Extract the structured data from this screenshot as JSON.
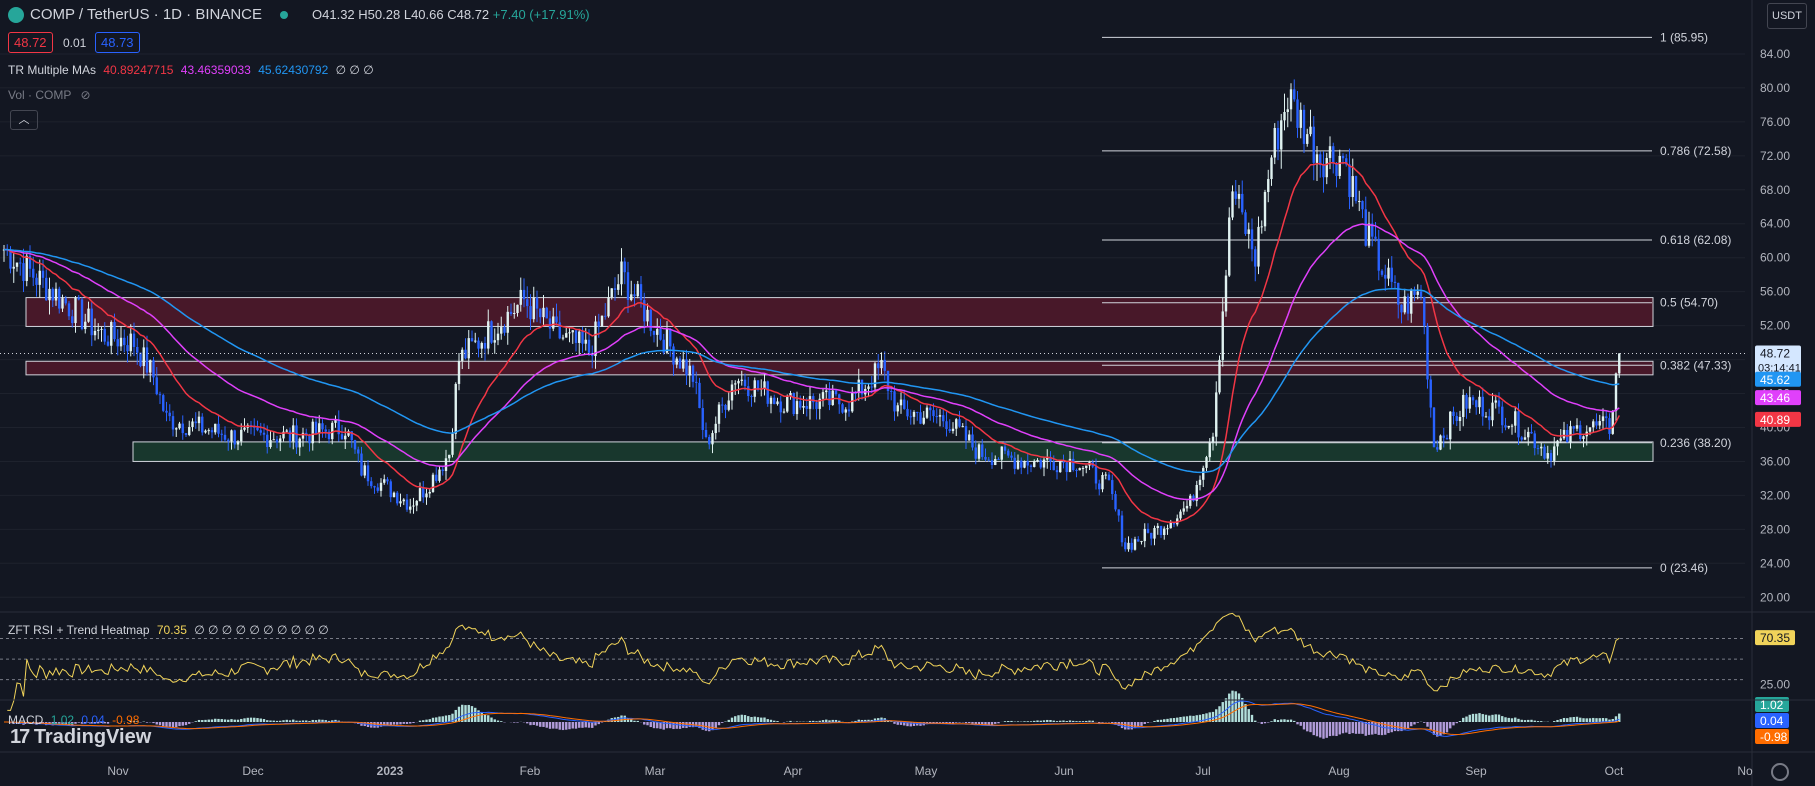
{
  "header": {
    "symbol": "COMP / TetherUS · 1D · BINANCE",
    "open": "O41.32",
    "high": "H50.28",
    "low": "L40.66",
    "close": "C48.72",
    "change": "+7.40 (+17.91%)",
    "bid": "48.72",
    "spread": "0.01",
    "ask": "48.73"
  },
  "indicators": {
    "ma_label": "TR Multiple MAs",
    "ma_values": [
      "40.89247715",
      "43.46359033",
      "45.62430792"
    ],
    "ma_tail": "∅ ∅ ∅",
    "vol_label": "Vol · COMP",
    "rsi_label": "ZFT RSI + Trend Heatmap",
    "rsi_value": "70.35",
    "rsi_tail": "∅ ∅ ∅ ∅ ∅ ∅ ∅ ∅ ∅ ∅",
    "macd_label": "MACD",
    "macd_values": [
      "1.02",
      "0.04",
      "-0.98"
    ]
  },
  "currency_button": "USDT",
  "brand": "TradingView",
  "colors": {
    "up": "#e0f2f1",
    "down": "#2962ff",
    "ma_fast": "#f23645",
    "ma_mid": "#e040fb",
    "ma_slow": "#2196f3",
    "zone_red": "#5b1a2c",
    "zone_green": "#1b4332",
    "rsi": "#f0d35a"
  },
  "chart_data": [
    {
      "type": "candlestick",
      "title": "COMP / TetherUS",
      "x_ticks": [
        "Nov",
        "Dec",
        "2023",
        "Feb",
        "Mar",
        "Apr",
        "May",
        "Jun",
        "Jul",
        "Aug",
        "Sep",
        "Oct",
        "No"
      ],
      "y_ticks": [
        20,
        24,
        28,
        32,
        36,
        40,
        44,
        48,
        52,
        56,
        60,
        64,
        68,
        72,
        76,
        80,
        84
      ],
      "ylim": [
        18.5,
        88
      ],
      "price_path": [
        {
          "x": 0,
          "y": 61
        },
        {
          "x": 15,
          "y": 56
        },
        {
          "x": 30,
          "y": 51
        },
        {
          "x": 40,
          "y": 50
        },
        {
          "x": 46,
          "y": 46
        },
        {
          "x": 50,
          "y": 41
        },
        {
          "x": 70,
          "y": 39
        },
        {
          "x": 90,
          "y": 39
        },
        {
          "x": 105,
          "y": 40
        },
        {
          "x": 110,
          "y": 35
        },
        {
          "x": 125,
          "y": 31
        },
        {
          "x": 130,
          "y": 33
        },
        {
          "x": 137,
          "y": 37
        },
        {
          "x": 140,
          "y": 48
        },
        {
          "x": 160,
          "y": 55
        },
        {
          "x": 170,
          "y": 51
        },
        {
          "x": 180,
          "y": 49
        },
        {
          "x": 190,
          "y": 58
        },
        {
          "x": 200,
          "y": 52
        },
        {
          "x": 212,
          "y": 46
        },
        {
          "x": 216,
          "y": 38
        },
        {
          "x": 225,
          "y": 46
        },
        {
          "x": 240,
          "y": 43
        },
        {
          "x": 260,
          "y": 43
        },
        {
          "x": 270,
          "y": 47
        },
        {
          "x": 275,
          "y": 42
        },
        {
          "x": 290,
          "y": 41
        },
        {
          "x": 300,
          "y": 37
        },
        {
          "x": 315,
          "y": 36
        },
        {
          "x": 330,
          "y": 36
        },
        {
          "x": 340,
          "y": 33
        },
        {
          "x": 345,
          "y": 26
        },
        {
          "x": 355,
          "y": 28
        },
        {
          "x": 365,
          "y": 31
        },
        {
          "x": 372,
          "y": 40
        },
        {
          "x": 378,
          "y": 68
        },
        {
          "x": 385,
          "y": 60
        },
        {
          "x": 390,
          "y": 72
        },
        {
          "x": 395,
          "y": 79
        },
        {
          "x": 405,
          "y": 72
        },
        {
          "x": 412,
          "y": 72
        },
        {
          "x": 420,
          "y": 62
        },
        {
          "x": 430,
          "y": 54
        },
        {
          "x": 436,
          "y": 56
        },
        {
          "x": 440,
          "y": 38
        },
        {
          "x": 450,
          "y": 43
        },
        {
          "x": 460,
          "y": 42
        },
        {
          "x": 470,
          "y": 39
        },
        {
          "x": 475,
          "y": 37
        },
        {
          "x": 485,
          "y": 40
        },
        {
          "x": 494,
          "y": 40
        },
        {
          "x": 497,
          "y": 48.72
        }
      ],
      "moving_averages": [
        {
          "period": "fast",
          "value": 40.89
        },
        {
          "period": "mid",
          "value": 43.46
        },
        {
          "period": "slow",
          "value": 45.62
        }
      ],
      "last_price": 48.72,
      "countdown": "03:14:41",
      "price_labels": [
        "48.72",
        "45.62",
        "43.46",
        "40.89"
      ],
      "fibonacci": [
        {
          "label": "1 (85.95)",
          "value": 85.95
        },
        {
          "label": "0.786 (72.58)",
          "value": 72.58
        },
        {
          "label": "0.618 (62.08)",
          "value": 62.08
        },
        {
          "label": "0.5 (54.70)",
          "value": 54.7
        },
        {
          "label": "0.382 (47.33)",
          "value": 47.33
        },
        {
          "label": "0.236 (38.20)",
          "value": 38.2
        },
        {
          "label": "0 (23.46)",
          "value": 23.46
        }
      ],
      "zones": [
        {
          "kind": "resistance",
          "from": 51.9,
          "to": 55.3
        },
        {
          "kind": "resistance",
          "from": 46.2,
          "to": 47.8
        },
        {
          "kind": "support",
          "from": 36.0,
          "to": 38.3
        }
      ]
    },
    {
      "type": "line",
      "title": "ZFT RSI + Trend Heatmap",
      "value": 70.35,
      "y_ticks": [
        25.0
      ],
      "levels": [
        70,
        50,
        30
      ]
    },
    {
      "type": "bar",
      "title": "MACD",
      "values": {
        "histogram": 1.02,
        "macd": 0.04,
        "signal": -0.98
      }
    }
  ]
}
